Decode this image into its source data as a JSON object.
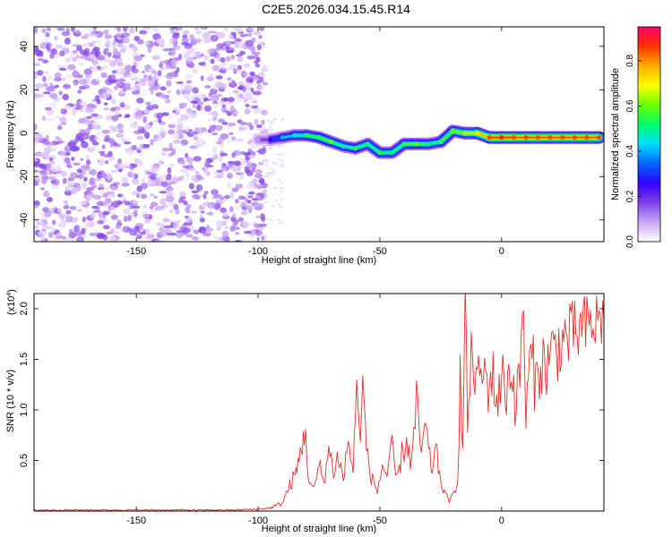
{
  "title": "C2E5.2026.034.15.45.R14",
  "chart_data": [
    {
      "type": "heatmap",
      "title": "",
      "xlabel": "Height of straight line (km)",
      "ylabel": "Frequency (Hz)",
      "xlim": [
        -192,
        42
      ],
      "ylim": [
        -50,
        49
      ],
      "xticks": [
        -150,
        -100,
        -50,
        0
      ],
      "yticks": [
        -40,
        -20,
        0,
        20,
        40
      ],
      "colorbar": {
        "label": "Normalized spectral amplitude",
        "range": [
          0,
          0.95
        ],
        "ticks": [
          0.0,
          0.2,
          0.4,
          0.6,
          0.8
        ],
        "colormap": [
          "#ffffff",
          "#c9a6f5",
          "#7f3fe6",
          "#3300ff",
          "#0066ff",
          "#00ddff",
          "#00ff66",
          "#66ff00",
          "#ffff00",
          "#ffaa00",
          "#ff3300",
          "#ff0066"
        ]
      },
      "noise_region": {
        "x_range": [
          -192,
          -97
        ],
        "y_range": [
          -50,
          49
        ],
        "amplitude_range": [
          0.02,
          0.18
        ]
      },
      "ridge": [
        {
          "x": -100,
          "y": -3,
          "amp": 0.1
        },
        {
          "x": -95,
          "y": -3,
          "amp": 0.25
        },
        {
          "x": -90,
          "y": -2,
          "amp": 0.4
        },
        {
          "x": -85,
          "y": -1,
          "amp": 0.45
        },
        {
          "x": -80,
          "y": -1,
          "amp": 0.55
        },
        {
          "x": -75,
          "y": -2,
          "amp": 0.55
        },
        {
          "x": -70,
          "y": -4,
          "amp": 0.6
        },
        {
          "x": -65,
          "y": -6,
          "amp": 0.45
        },
        {
          "x": -60,
          "y": -7,
          "amp": 0.55
        },
        {
          "x": -55,
          "y": -5,
          "amp": 0.5
        },
        {
          "x": -50,
          "y": -9,
          "amp": 0.55
        },
        {
          "x": -45,
          "y": -9,
          "amp": 0.5
        },
        {
          "x": -40,
          "y": -5,
          "amp": 0.55
        },
        {
          "x": -35,
          "y": -5,
          "amp": 0.6
        },
        {
          "x": -30,
          "y": -5,
          "amp": 0.5
        },
        {
          "x": -25,
          "y": -4,
          "amp": 0.55
        },
        {
          "x": -20,
          "y": 1,
          "amp": 0.6
        },
        {
          "x": -15,
          "y": 0,
          "amp": 0.65
        },
        {
          "x": -10,
          "y": 0,
          "amp": 0.7
        },
        {
          "x": -5,
          "y": -2,
          "amp": 0.85
        },
        {
          "x": 0,
          "y": -2,
          "amp": 0.9
        },
        {
          "x": 5,
          "y": -2,
          "amp": 0.85
        },
        {
          "x": 10,
          "y": -2,
          "amp": 0.85
        },
        {
          "x": 15,
          "y": -2,
          "amp": 0.85
        },
        {
          "x": 20,
          "y": -2,
          "amp": 0.85
        },
        {
          "x": 25,
          "y": -2,
          "amp": 0.85
        },
        {
          "x": 30,
          "y": -2,
          "amp": 0.85
        },
        {
          "x": 35,
          "y": -2,
          "amp": 0.85
        },
        {
          "x": 40,
          "y": -2,
          "amp": 0.85
        }
      ]
    },
    {
      "type": "line",
      "title": "",
      "xlabel": "Height of straight line (km)",
      "ylabel": "SNR (10 * v/v)",
      "y_multiplier": "(x10",
      "y_multiplier_exp": "4",
      "y_multiplier_close": ")",
      "xlim": [
        -192,
        42
      ],
      "ylim": [
        0,
        2.15
      ],
      "xticks": [
        -150,
        -100,
        -50,
        0
      ],
      "yticks": [
        0.5,
        1.0,
        1.5,
        2.0
      ],
      "ytick_labels": [
        "0.5",
        "1.0",
        "1.5",
        "2.0"
      ],
      "color": "#e8302e",
      "series": [
        {
          "x": [
            -192,
            -180,
            -170,
            -160,
            -150,
            -140,
            -130,
            -120,
            -110,
            -100,
            -95,
            -90,
            -87,
            -84,
            -81,
            -79,
            -77,
            -75,
            -73,
            -71,
            -69,
            -67,
            -65,
            -63,
            -61,
            -59,
            -58,
            -57,
            -55,
            -53,
            -51,
            -49,
            -47,
            -45,
            -43,
            -41,
            -39,
            -37,
            -35,
            -33,
            -31,
            -29,
            -27,
            -25,
            -23,
            -21,
            -19,
            -18,
            -17,
            -16,
            -15,
            -14,
            -12,
            -10,
            -8,
            -6,
            -4,
            -2,
            0,
            2,
            4,
            6,
            8,
            9,
            10,
            11,
            12,
            14,
            16,
            18,
            20,
            22,
            24,
            26,
            28,
            30,
            32,
            34,
            36,
            38,
            40,
            42
          ],
          "y": [
            0.01,
            0.01,
            0.01,
            0.01,
            0.01,
            0.01,
            0.01,
            0.01,
            0.01,
            0.02,
            0.03,
            0.08,
            0.25,
            0.4,
            0.8,
            0.3,
            0.2,
            0.45,
            0.3,
            0.6,
            0.4,
            0.55,
            0.3,
            0.7,
            0.4,
            1.38,
            0.6,
            1.25,
            0.5,
            0.3,
            0.2,
            0.45,
            0.35,
            0.6,
            0.3,
            0.55,
            0.7,
            0.45,
            1.05,
            0.6,
            0.8,
            0.4,
            0.6,
            0.3,
            0.15,
            0.1,
            0.2,
            0.4,
            1.3,
            0.6,
            2.05,
            0.9,
            1.6,
            1.2,
            1.4,
            1.25,
            1.35,
            1.1,
            1.3,
            1.2,
            1.45,
            1.0,
            1.55,
            2.1,
            0.85,
            1.3,
            1.55,
            1.25,
            1.5,
            1.4,
            1.55,
            1.6,
            1.65,
            1.7,
            1.72,
            1.75,
            1.78,
            1.8,
            1.82,
            1.85,
            1.88,
            1.9
          ]
        }
      ]
    }
  ]
}
